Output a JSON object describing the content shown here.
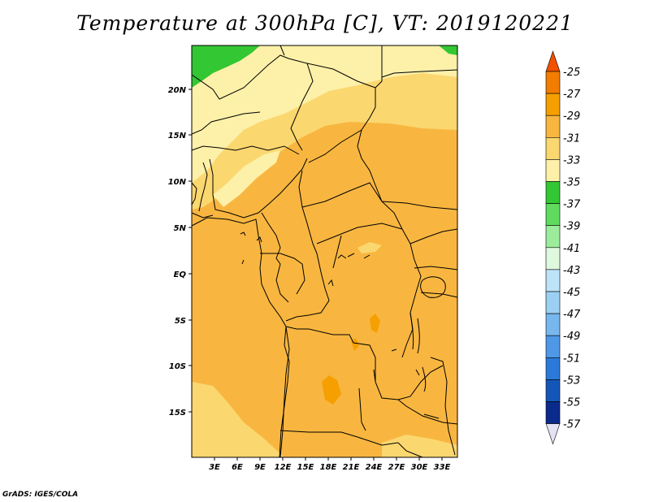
{
  "title": "Temperature at 300hPa [C], VT: 2019120221",
  "credit": "GrADS: IGES/COLA",
  "lat_labels": [
    "20N",
    "15N",
    "10N",
    "5N",
    "EQ",
    "5S",
    "10S",
    "15S"
  ],
  "lon_labels": [
    "3E",
    "6E",
    "9E",
    "12E",
    "15E",
    "18E",
    "21E",
    "24E",
    "27E",
    "30E",
    "33E"
  ],
  "colorbar": {
    "levels": [
      "-25",
      "-27",
      "-29",
      "-31",
      "-33",
      "-35",
      "-37",
      "-39",
      "-41",
      "-43",
      "-45",
      "-47",
      "-49",
      "-51",
      "-53",
      "-55",
      "-57"
    ],
    "colors": [
      "#f05000",
      "#f27d00",
      "#f5a000",
      "#f8b640",
      "#fbd76f",
      "#fdf0a8",
      "#33c733",
      "#5fdc5f",
      "#9cec9c",
      "#def9de",
      "#bde3f8",
      "#9cd0f3",
      "#77b7ee",
      "#4f98e7",
      "#2b7ad9",
      "#1456b8",
      "#0a2a8c",
      "#0a0a6a"
    ],
    "top_triangle_color": "#f05000",
    "bottom_triangle_color": "#e3e3f5"
  },
  "map_colors": {
    "warm_orange": "#f8b640",
    "pale_yellow": "#fdf0a8",
    "light_yellow": "#fbd76f",
    "green": "#33c733",
    "deep_orange": "#f5a000"
  }
}
